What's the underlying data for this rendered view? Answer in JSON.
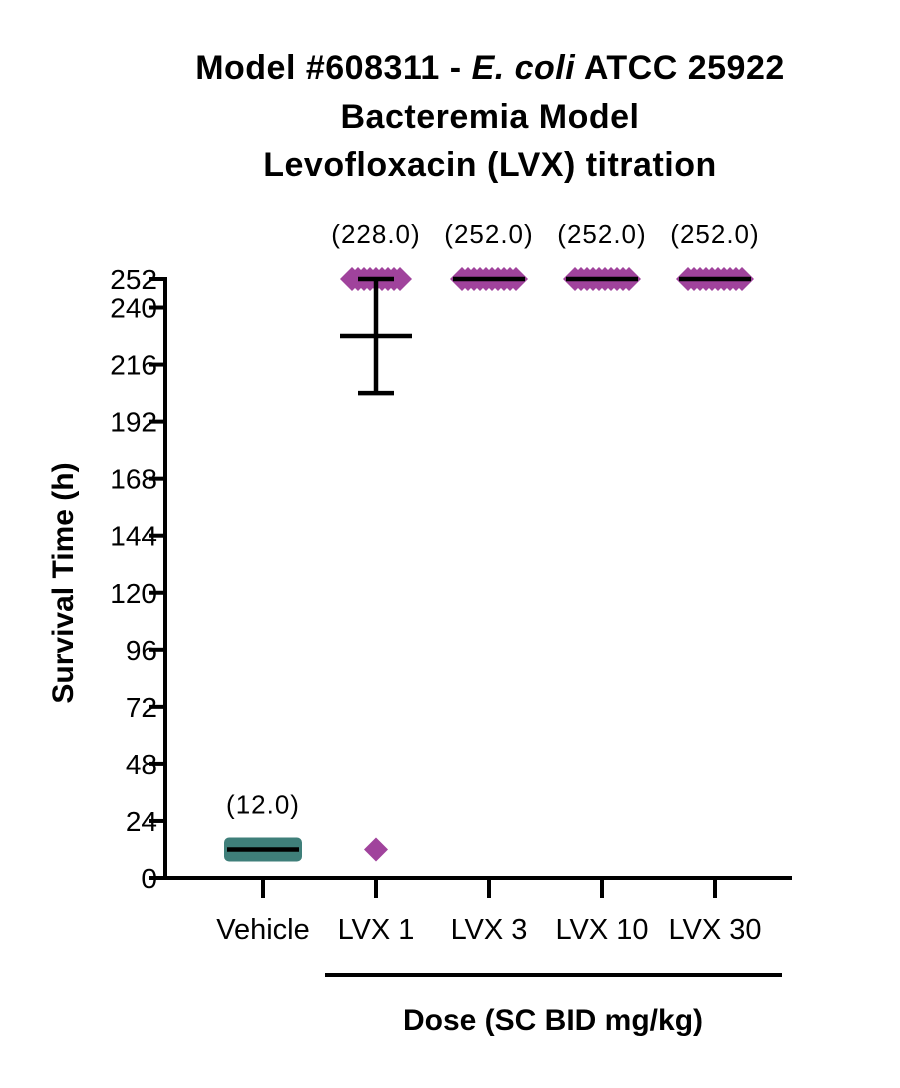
{
  "chart_data": {
    "type": "scatter",
    "title_lines": [
      [
        "Model #608311 - ",
        "E. coli",
        " ATCC 25922"
      ],
      "Bacteremia Model",
      "Levofloxacin (LVX) titration"
    ],
    "ylabel": "Survival Time (h)",
    "xlabel": "Dose (SC BID mg/kg)",
    "ylim": [
      0,
      252
    ],
    "yticks": [
      0,
      24,
      48,
      72,
      96,
      120,
      144,
      168,
      192,
      216,
      240,
      252
    ],
    "categories": [
      "Vehicle",
      "LVX 1",
      "LVX 3",
      "LVX 10",
      "LVX 30"
    ],
    "groups": [
      {
        "category": "Vehicle",
        "color": "#3f7f7a",
        "values": [
          12,
          12,
          12,
          12,
          12,
          12,
          12,
          12,
          12,
          12
        ],
        "median": 12,
        "annotation": "(12.0)"
      },
      {
        "category": "LVX 1",
        "color": "#a0439c",
        "values": [
          12,
          252,
          252,
          252,
          252,
          252,
          252,
          252,
          252,
          252
        ],
        "mean": 228,
        "error": [
          204,
          252
        ],
        "annotation": "(228.0)"
      },
      {
        "category": "LVX 3",
        "color": "#a0439c",
        "values": [
          252,
          252,
          252,
          252,
          252,
          252,
          252,
          252,
          252,
          252
        ],
        "median": 252,
        "annotation": "(252.0)"
      },
      {
        "category": "LVX 10",
        "color": "#a0439c",
        "values": [
          252,
          252,
          252,
          252,
          252,
          252,
          252,
          252,
          252,
          252
        ],
        "median": 252,
        "annotation": "(252.0)"
      },
      {
        "category": "LVX 30",
        "color": "#a0439c",
        "values": [
          252,
          252,
          252,
          252,
          252,
          252,
          252,
          252,
          252,
          252
        ],
        "median": 252,
        "annotation": "(252.0)"
      }
    ]
  }
}
